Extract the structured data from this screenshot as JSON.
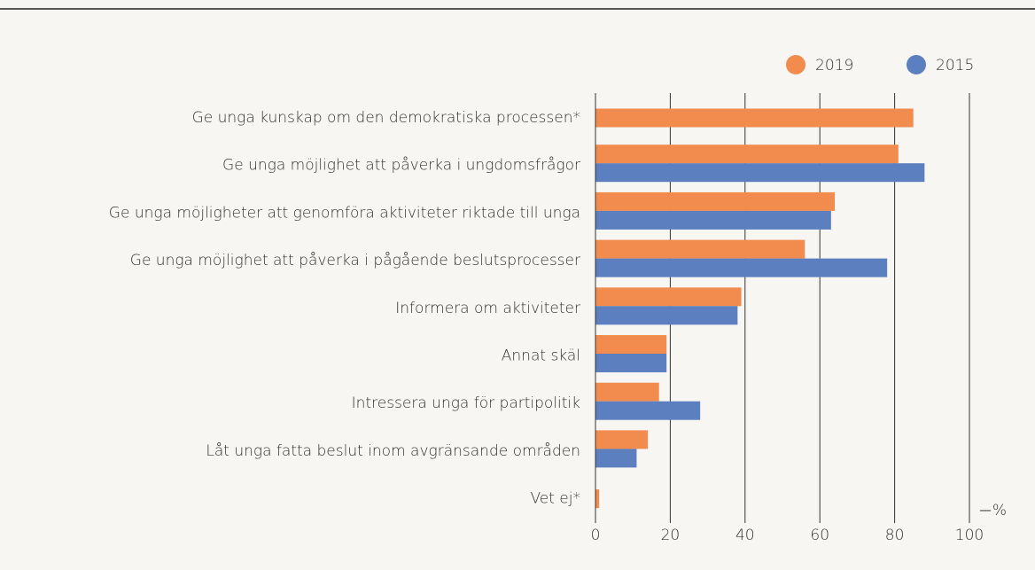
{
  "chart_data": {
    "type": "hbar",
    "categories": [
      "Ge unga kunskap om den demokratiska processen*",
      "Ge unga möjlighet att påverka i ungdomsfrågor",
      "Ge unga möjligheter att genomföra aktiviteter riktade till unga",
      "Ge unga möjlighet att påverka i pågående beslutsprocesser",
      "Informera om aktiviteter",
      "Annat skäl",
      "Intressera unga för partipolitik",
      "Låt unga fatta beslut inom avgränsande områden",
      "Vet ej*"
    ],
    "series": [
      {
        "name": "2019",
        "color": "#f28c4e",
        "values": [
          85,
          81,
          64,
          56,
          39,
          19,
          17,
          14,
          1
        ]
      },
      {
        "name": "2015",
        "color": "#5b7fbf",
        "values": [
          null,
          88,
          63,
          78,
          38,
          19,
          28,
          11,
          null
        ]
      }
    ],
    "x_label": "%",
    "xlim": [
      0,
      100
    ],
    "xticks": [
      0,
      20,
      40,
      60,
      80,
      100
    ],
    "grid": true,
    "legend": "top-right"
  }
}
